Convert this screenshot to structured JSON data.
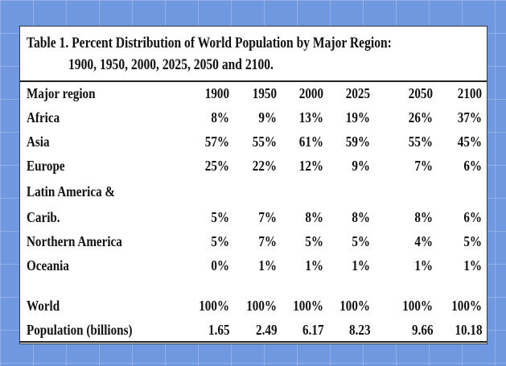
{
  "table": {
    "title_line1": "Table 1. Percent Distribution of World Population by Major Region:",
    "title_line2": "1900, 1950, 2000, 2025, 2050 and 2100.",
    "header_label": "Major region",
    "years": [
      "1900",
      "1950",
      "2000",
      "2025",
      "2050",
      "2100"
    ],
    "rows": [
      {
        "region": "Africa",
        "values": [
          "8%",
          "9%",
          "13%",
          "19%",
          "26%",
          "37%"
        ]
      },
      {
        "region": "Asia",
        "values": [
          "57%",
          "55%",
          "61%",
          "59%",
          "55%",
          "45%"
        ]
      },
      {
        "region": "Europe",
        "values": [
          "25%",
          "22%",
          "12%",
          "9%",
          "7%",
          "6%"
        ]
      },
      {
        "region": "Latin America &",
        "values": null
      },
      {
        "region": "Carib.",
        "values": [
          "5%",
          "7%",
          "8%",
          "8%",
          "8%",
          "6%"
        ]
      },
      {
        "region": "Northern America",
        "values": [
          "5%",
          "7%",
          "5%",
          "5%",
          "4%",
          "5%"
        ]
      },
      {
        "region": "Oceania",
        "values": [
          "0%",
          "1%",
          "1%",
          "1%",
          "1%",
          "1%"
        ]
      },
      {
        "region": "World",
        "values": [
          "100%",
          "100%",
          "100%",
          "100%",
          "100%",
          "100%"
        ]
      },
      {
        "region": "Population (billions)",
        "values": [
          "1.65",
          "2.49",
          "6.17",
          "8.23",
          "9.66",
          "10.18"
        ]
      }
    ]
  },
  "chart_data": {
    "type": "table",
    "title": "Table 1. Percent Distribution of World Population by Major Region: 1900, 1950, 2000, 2025, 2050 and 2100.",
    "columns": [
      "Major region",
      "1900",
      "1950",
      "2000",
      "2025",
      "2050",
      "2100"
    ],
    "series": [
      {
        "name": "Africa",
        "values": [
          8,
          9,
          13,
          19,
          26,
          37
        ]
      },
      {
        "name": "Asia",
        "values": [
          57,
          55,
          61,
          59,
          55,
          45
        ]
      },
      {
        "name": "Europe",
        "values": [
          25,
          22,
          12,
          9,
          7,
          6
        ]
      },
      {
        "name": "Latin America & Carib.",
        "values": [
          5,
          7,
          8,
          8,
          8,
          6
        ]
      },
      {
        "name": "Northern America",
        "values": [
          5,
          7,
          5,
          5,
          4,
          5
        ]
      },
      {
        "name": "Oceania",
        "values": [
          0,
          1,
          1,
          1,
          1,
          1
        ]
      },
      {
        "name": "World",
        "values": [
          100,
          100,
          100,
          100,
          100,
          100
        ]
      },
      {
        "name": "Population (billions)",
        "values": [
          1.65,
          2.49,
          6.17,
          8.23,
          9.66,
          10.18
        ]
      }
    ]
  }
}
